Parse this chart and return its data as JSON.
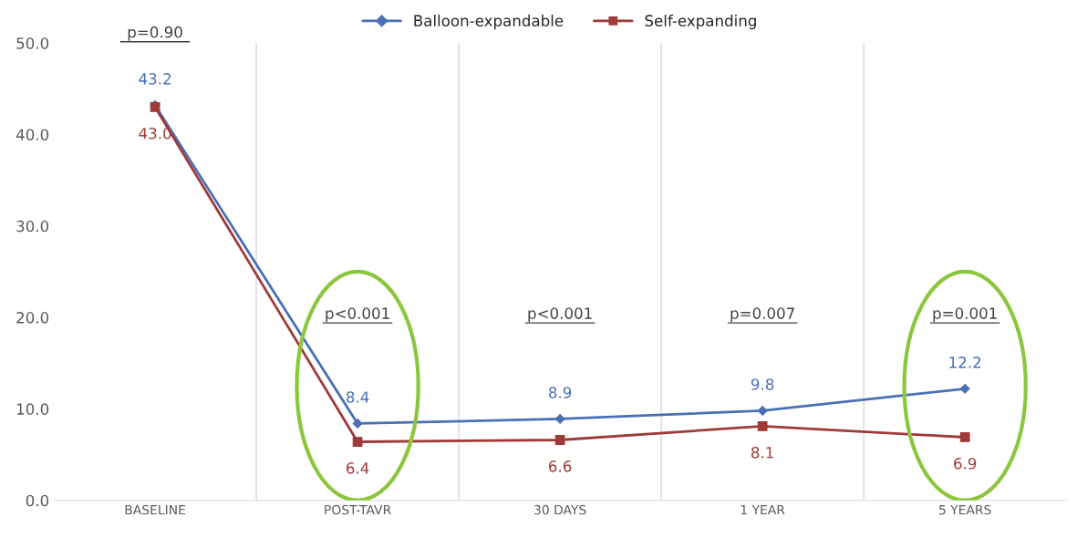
{
  "chart_data": {
    "type": "line",
    "categories": [
      "BASELINE",
      "POST-TAVR",
      "30 DAYS",
      "1 YEAR",
      "5 YEARS"
    ],
    "series": [
      {
        "name": "Balloon-expandable",
        "color": "#4a6fb5",
        "marker": "diamond",
        "values": [
          43.2,
          8.4,
          8.9,
          9.8,
          12.2
        ],
        "value_labels": [
          "43.2",
          "8.4",
          "8.9",
          "9.8",
          "12.2"
        ]
      },
      {
        "name": "Self-expanding",
        "color": "#9e3a38",
        "marker": "square",
        "values": [
          43.0,
          6.4,
          6.6,
          8.1,
          6.9
        ],
        "value_labels": [
          "43.0",
          "6.4",
          "6.6",
          "8.1",
          "6.9"
        ]
      }
    ],
    "ylim": [
      0,
      50
    ],
    "yticks": [
      {
        "value": 0,
        "label": "0.0"
      },
      {
        "value": 10,
        "label": "10.0"
      },
      {
        "value": 20,
        "label": "20.0"
      },
      {
        "value": 30,
        "label": "30.0"
      },
      {
        "value": 40,
        "label": "40.0"
      },
      {
        "value": 50,
        "label": "50.0"
      }
    ],
    "annotations": [
      "p=0.90",
      "p<0.001",
      "p<0.001",
      "p=0.007",
      "p=0.001"
    ],
    "grid": "x",
    "legend": "top",
    "line_style": "solid"
  }
}
